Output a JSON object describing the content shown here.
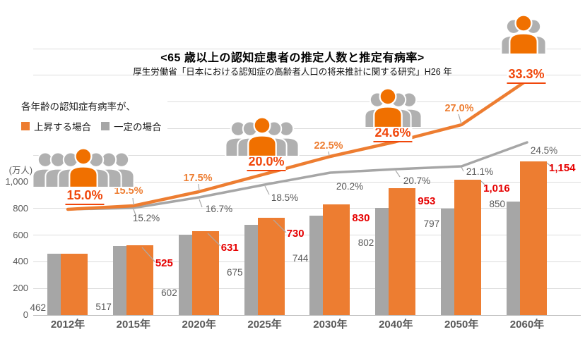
{
  "title": "<65 歳以上の認知症患者の推定人数と推定有病率>",
  "subtitle": "厚生労働省「日本における認知症の高齢者人口の将来推計に関する研究」H26 年",
  "legend": {
    "intro": "各年齢の認知症有病率が、",
    "series": [
      {
        "label": "上昇する場合",
        "color": "#ED7D31"
      },
      {
        "label": "一定の場合",
        "color": "#A6A6A6"
      }
    ]
  },
  "y_axis": {
    "unit": "(万人)",
    "ticks": [
      {
        "label": "1,000",
        "value": 1000
      },
      {
        "label": "800",
        "value": 800
      },
      {
        "label": "600",
        "value": 600
      },
      {
        "label": "400",
        "value": 400
      },
      {
        "label": "200",
        "value": 200
      },
      {
        "label": "0",
        "value": 0
      }
    ]
  },
  "chart_data": {
    "type": "combo-bar-line",
    "categories": [
      "2012年",
      "2015年",
      "2020年",
      "2025年",
      "2030年",
      "2040年",
      "2050年",
      "2060年"
    ],
    "bars": [
      {
        "name": "一定の場合",
        "color": "#A6A6A6",
        "values": [
          462,
          517,
          602,
          675,
          744,
          802,
          797,
          850
        ],
        "labels": [
          "462",
          "517",
          "602",
          "675",
          "744",
          "802",
          "797",
          "850"
        ],
        "label_color": "#595959"
      },
      {
        "name": "上昇する場合",
        "color": "#ED7D31",
        "values": [
          462,
          525,
          631,
          730,
          830,
          953,
          1016,
          1154
        ],
        "labels": [
          "",
          "525",
          "631",
          "730",
          "830",
          "953",
          "1,016",
          "1,154"
        ],
        "label_color": "#E60000"
      }
    ],
    "lines": [
      {
        "name": "一定の場合",
        "color": "#A6A6A6",
        "values_pct": [
          15.0,
          15.2,
          16.7,
          18.5,
          20.2,
          20.7,
          21.1,
          24.5
        ],
        "labels": [
          "",
          "15.2%",
          "16.7%",
          "18.5%",
          "20.2%",
          "20.7%",
          "21.1%",
          "24.5%"
        ]
      },
      {
        "name": "上昇する場合",
        "color": "#ED7D31",
        "emphasis_color": "#F0470B",
        "values_pct": [
          15.0,
          15.5,
          17.5,
          20.0,
          22.5,
          24.6,
          27.0,
          33.3
        ],
        "labels": [
          "15.0%",
          "15.5%",
          "17.5%",
          "20.0%",
          "22.5%",
          "24.6%",
          "27.0%",
          "33.3%"
        ],
        "emphasis": [
          true,
          false,
          false,
          true,
          false,
          true,
          false,
          true
        ]
      }
    ],
    "ylabel": "(万人)",
    "ylim_primary": [
      0,
      2000
    ],
    "ylim_secondary_pct": [
      0,
      40
    ],
    "grid": "horizontal"
  },
  "people_groups": [
    {
      "count": 7,
      "highlight_index": 3,
      "rate_label": "15.0%",
      "gray_color": "#B0B0B0",
      "highlight_color": "#F07000"
    },
    {
      "count": 5,
      "highlight_index": 2,
      "rate_label": "20.0%",
      "gray_color": "#B0B0B0",
      "highlight_color": "#F07000"
    },
    {
      "count": 4,
      "highlight_index": 1,
      "rate_label": "24.6%",
      "gray_color": "#B0B0B0",
      "highlight_color": "#F07000"
    },
    {
      "count": 3,
      "highlight_index": 1,
      "rate_label": "33.3%",
      "gray_color": "#B0B0B0",
      "highlight_color": "#F07000"
    }
  ]
}
